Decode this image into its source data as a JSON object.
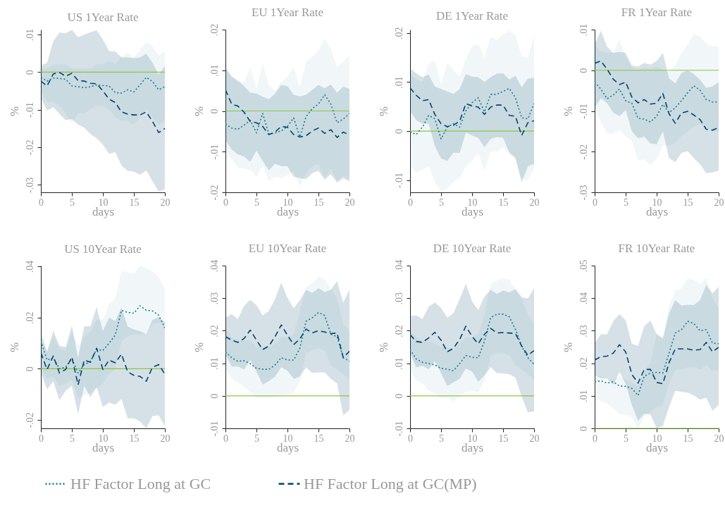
{
  "chart_data": [
    {
      "type": "line",
      "title": "US 1Year Rate",
      "xlabel": "days",
      "ylabel": "%",
      "x": [
        0,
        1,
        2,
        3,
        4,
        5,
        6,
        7,
        8,
        9,
        10,
        11,
        12,
        13,
        14,
        15,
        16,
        17,
        18,
        19,
        20
      ],
      "xlim": [
        0,
        20
      ],
      "xticks": [
        0,
        5,
        10,
        15,
        20
      ],
      "ylim": [
        -0.032,
        0.0113
      ],
      "yticks": [
        {
          "value": 0.01,
          "label": ".01"
        },
        {
          "value": 0,
          "label": "0"
        },
        {
          "value": -0.01,
          "label": "-.01"
        },
        {
          "value": -0.02,
          "label": "-.02"
        },
        {
          "value": -0.03,
          "label": "-.03"
        }
      ],
      "legend": "bottom",
      "ref_lines": [
        {
          "axis": "y",
          "value": 0,
          "color": "#8dc63f"
        }
      ],
      "series": [
        {
          "name": "HF Factor Long at GC",
          "color": "#0e7c8c",
          "line_style": "dotted",
          "values": [
            -0.0014,
            -0.0024,
            -0.0016,
            -0.0017,
            -0.0019,
            -0.0037,
            -0.0039,
            -0.0042,
            -0.0039,
            -0.0034,
            -0.0036,
            -0.0037,
            -0.0055,
            -0.0056,
            -0.0047,
            -0.0053,
            -0.0034,
            -0.0014,
            -0.0025,
            -0.0047,
            -0.0039
          ],
          "lower": [
            -0.005,
            -0.008,
            -0.008,
            -0.009,
            -0.011,
            -0.0137,
            -0.011,
            -0.011,
            -0.01,
            -0.009,
            -0.009,
            -0.01,
            -0.012,
            -0.013,
            -0.013,
            -0.014,
            -0.012,
            -0.01,
            -0.012,
            -0.014,
            -0.013
          ],
          "upper": [
            0.001,
            0.001,
            0.002,
            0.002,
            0.002,
            0.001,
            0.001,
            0.001,
            0.001,
            0.002,
            0.002,
            0.003,
            0.002,
            0.0042,
            0.005,
            0.0039,
            0.0059,
            0.008,
            0.0069,
            0.0044,
            0.0056
          ]
        },
        {
          "name": "HF Factor Long at GC(MP)",
          "color": "#00456b",
          "line_style": "dashed",
          "values": [
            -0.0024,
            -0.0037,
            -0.0005,
            -0.0001,
            -0.0011,
            -0.0003,
            -0.0023,
            -0.0024,
            -0.003,
            -0.0031,
            -0.005,
            -0.0072,
            -0.0081,
            -0.0106,
            -0.0112,
            -0.0114,
            -0.0114,
            -0.0106,
            -0.0131,
            -0.0161,
            -0.015
          ],
          "lower": [
            -0.0069,
            -0.0103,
            -0.0093,
            -0.0111,
            -0.0128,
            -0.0125,
            -0.014,
            -0.0148,
            -0.0165,
            -0.0176,
            -0.0193,
            -0.0218,
            -0.0213,
            -0.0249,
            -0.0263,
            -0.0265,
            -0.0273,
            -0.0262,
            -0.029,
            -0.0318,
            -0.0312
          ],
          "upper": [
            0.0017,
            0.0025,
            0.0082,
            0.0105,
            0.0103,
            0.0112,
            0.0093,
            0.01,
            0.0106,
            0.0111,
            0.0087,
            0.0056,
            0.0055,
            0.0039,
            0.0039,
            0.0037,
            0.0039,
            0.0049,
            0.0025,
            -0.0006,
            0.0016
          ]
        }
      ]
    },
    {
      "type": "line",
      "title": "EU 1Year Rate",
      "xlabel": "days",
      "ylabel": "%",
      "x": [
        0,
        1,
        2,
        3,
        4,
        5,
        6,
        7,
        8,
        9,
        10,
        11,
        12,
        13,
        14,
        15,
        16,
        17,
        18,
        19,
        20
      ],
      "xlim": [
        0,
        20
      ],
      "xticks": [
        0,
        5,
        10,
        15,
        20
      ],
      "ylim": [
        -0.02,
        0.02
      ],
      "yticks": [
        {
          "value": 0.02,
          "label": ".02"
        },
        {
          "value": 0.01,
          "label": ".01"
        },
        {
          "value": 0,
          "label": "0"
        },
        {
          "value": -0.01,
          "label": "-.01"
        },
        {
          "value": -0.02,
          "label": "-.02"
        }
      ],
      "legend": "bottom",
      "ref_lines": [
        {
          "axis": "y",
          "value": 0,
          "color": "#8dc63f"
        }
      ],
      "series": [
        {
          "name": "HF Factor Long at GC",
          "color": "#0e7c8c",
          "line_style": "dotted",
          "values": [
            -0.0032,
            -0.0042,
            -0.0045,
            -0.0035,
            -0.0023,
            -0.0054,
            -0.0006,
            -0.0057,
            -0.0054,
            -0.0049,
            -0.0038,
            -0.0017,
            -0.0064,
            -0.0014,
            0.0006,
            0.0017,
            0.004,
            0.0017,
            -0.0029,
            -0.002,
            -0.0006
          ],
          "lower": [
            -0.0101,
            -0.0119,
            -0.0139,
            -0.0142,
            -0.0145,
            -0.0162,
            -0.0133,
            -0.0173,
            -0.0162,
            -0.0165,
            -0.0158,
            -0.015,
            -0.0185,
            -0.0153,
            -0.0136,
            -0.013,
            -0.0165,
            -0.0142,
            -0.0171,
            -0.0159,
            -0.0165
          ],
          "upper": [
            0.0107,
            0.0084,
            0.0072,
            0.0072,
            0.0107,
            0.0055,
            0.0118,
            0.0064,
            0.0049,
            0.0072,
            0.0084,
            0.0108,
            0.0058,
            0.0121,
            0.0133,
            0.015,
            0.0177,
            0.0153,
            0.0107,
            0.0121,
            0.0137
          ]
        },
        {
          "name": "HF Factor Long at GC(MP)",
          "color": "#00456b",
          "line_style": "dashed",
          "values": [
            0.0052,
            0.0017,
            0.0012,
            -0.0003,
            -0.0026,
            -0.0029,
            -0.0038,
            -0.0058,
            -0.0052,
            -0.0038,
            -0.004,
            -0.0058,
            -0.0064,
            -0.0061,
            -0.0049,
            -0.0042,
            -0.0055,
            -0.0046,
            -0.0065,
            -0.0052,
            -0.0059
          ],
          "lower": [
            -0.0072,
            -0.0095,
            -0.0107,
            -0.0112,
            -0.0125,
            -0.0098,
            -0.0123,
            -0.0146,
            -0.013,
            -0.0136,
            -0.0136,
            -0.0162,
            -0.0165,
            -0.0168,
            -0.0153,
            -0.0147,
            -0.0169,
            -0.0156,
            -0.0176,
            -0.0165,
            -0.0173
          ],
          "upper": [
            0.0106,
            0.0085,
            0.0075,
            0.0061,
            0.0045,
            0.0043,
            0.0035,
            0.0029,
            0.0043,
            0.0064,
            0.0061,
            0.004,
            0.0036,
            0.004,
            0.0052,
            0.0064,
            0.0056,
            0.0065,
            0.0045,
            0.006,
            0.0054
          ]
        }
      ]
    },
    {
      "type": "line",
      "title": "DE 1Year Rate",
      "xlabel": "days",
      "ylabel": "%",
      "x": [
        0,
        1,
        2,
        3,
        4,
        5,
        6,
        7,
        8,
        9,
        10,
        11,
        12,
        13,
        14,
        15,
        16,
        17,
        18,
        19,
        20
      ],
      "xlim": [
        0,
        20
      ],
      "xticks": [
        0,
        5,
        10,
        15,
        20
      ],
      "ylim": [
        -0.0125,
        0.0207
      ],
      "yticks": [
        {
          "value": 0.02,
          "label": ".02"
        },
        {
          "value": 0.01,
          "label": ".01"
        },
        {
          "value": 0,
          "label": "0"
        },
        {
          "value": -0.01,
          "label": "-.01"
        }
      ],
      "legend": "bottom",
      "ref_lines": [
        {
          "axis": "y",
          "value": 0,
          "color": "#8dc63f"
        }
      ],
      "series": [
        {
          "name": "HF Factor Long at GC",
          "color": "#0e7c8c",
          "line_style": "dotted",
          "values": [
            -0.0002,
            -0.0007,
            0.0008,
            0.0032,
            0.0025,
            -0.0016,
            0.0008,
            0.0015,
            0.0008,
            0.0041,
            0.0058,
            0.0068,
            0.0039,
            0.0075,
            0.0075,
            0.0081,
            0.0087,
            0.0068,
            0.0027,
            0.0025,
            0.0056
          ],
          "lower": [
            -0.0071,
            -0.0085,
            -0.0079,
            -0.0072,
            -0.0105,
            -0.0122,
            -0.0117,
            -0.0103,
            -0.0097,
            -0.0072,
            -0.006,
            -0.0045,
            -0.0081,
            -0.0042,
            -0.0042,
            -0.0033,
            -0.0048,
            -0.0057,
            -0.0096,
            -0.0101,
            -0.0076
          ],
          "upper": [
            0.0116,
            0.0106,
            0.0101,
            0.0138,
            0.0144,
            0.0094,
            0.0139,
            0.0125,
            0.011,
            0.0147,
            0.0173,
            0.0178,
            0.0149,
            0.0193,
            0.0186,
            0.0198,
            0.0205,
            0.0195,
            0.0154,
            0.015,
            0.0193
          ]
        },
        {
          "name": "HF Factor Long at GC(MP)",
          "color": "#00456b",
          "line_style": "dashed",
          "values": [
            0.0088,
            0.0073,
            0.0062,
            0.0064,
            0.0034,
            0.0015,
            0.0009,
            0.0012,
            0.002,
            0.0056,
            0.0051,
            0.0049,
            0.0034,
            0.0049,
            0.0053,
            0.0053,
            0.0032,
            0.003,
            -0.0009,
            0.0017,
            0.0021
          ],
          "lower": [
            0.0041,
            0.0022,
            0.0015,
            0.0015,
            -0.0031,
            -0.0056,
            -0.0061,
            -0.0044,
            -0.0045,
            -0.0003,
            -0.0009,
            -0.0014,
            -0.0033,
            -0.0016,
            -0.0012,
            -0.0014,
            -0.0043,
            -0.0055,
            -0.0105,
            -0.0072,
            -0.0067
          ],
          "upper": [
            0.0128,
            0.0118,
            0.011,
            0.0115,
            0.0091,
            0.0086,
            0.0081,
            0.0076,
            0.0086,
            0.0116,
            0.0111,
            0.011,
            0.01,
            0.011,
            0.0117,
            0.0118,
            0.0105,
            0.0113,
            0.0089,
            0.0107,
            0.0109
          ]
        }
      ]
    },
    {
      "type": "line",
      "title": "FR 1Year Rate",
      "xlabel": "days",
      "ylabel": "%",
      "x": [
        0,
        1,
        2,
        3,
        4,
        5,
        6,
        7,
        8,
        9,
        10,
        11,
        12,
        13,
        14,
        15,
        16,
        17,
        18,
        19,
        20
      ],
      "xlim": [
        0,
        20
      ],
      "xticks": [
        0,
        5,
        10,
        15,
        20
      ],
      "ylim": [
        -0.03,
        0.01
      ],
      "yticks": [
        {
          "value": 0.01,
          "label": ".01"
        },
        {
          "value": 0,
          "label": "0"
        },
        {
          "value": -0.01,
          "label": "-.01"
        },
        {
          "value": -0.02,
          "label": "-.02"
        },
        {
          "value": -0.03,
          "label": "-.03"
        }
      ],
      "legend": "bottom",
      "ref_lines": [
        {
          "axis": "y",
          "value": 0,
          "color": "#8dc63f"
        }
      ],
      "series": [
        {
          "name": "HF Factor Long at GC",
          "color": "#0e7c8c",
          "line_style": "dotted",
          "values": [
            -0.0029,
            -0.0046,
            -0.007,
            -0.0061,
            -0.0046,
            -0.0075,
            -0.0081,
            -0.0118,
            -0.012,
            -0.0127,
            -0.0113,
            -0.0084,
            -0.0104,
            -0.0092,
            -0.0075,
            -0.0055,
            -0.0038,
            -0.0049,
            -0.0072,
            -0.0078,
            -0.0078
          ],
          "lower": [
            -0.0098,
            -0.0127,
            -0.0156,
            -0.0156,
            -0.0147,
            -0.0162,
            -0.0173,
            -0.0222,
            -0.0219,
            -0.0234,
            -0.0218,
            -0.0185,
            -0.0185,
            -0.0179,
            -0.0162,
            -0.015,
            -0.0138,
            -0.0133,
            -0.0141,
            -0.015,
            -0.015
          ],
          "upper": [
            0.0063,
            0.0046,
            0.0043,
            0.0043,
            0.0078,
            0.0032,
            0.0006,
            0,
            0.0006,
            0.0003,
            0.0009,
            0,
            -0.0003,
            0.0012,
            0.0043,
            0.0063,
            0.0089,
            0.0084,
            0.0066,
            0.0059,
            0.0058
          ]
        },
        {
          "name": "HF Factor Long at GC(MP)",
          "color": "#00456b",
          "line_style": "dashed",
          "values": [
            0.0017,
            0.0023,
            0.0003,
            -0.0022,
            -0.0035,
            -0.0029,
            -0.0066,
            -0.008,
            -0.0072,
            -0.0083,
            -0.0081,
            -0.0057,
            -0.0107,
            -0.013,
            -0.0105,
            -0.0101,
            -0.011,
            -0.0121,
            -0.0145,
            -0.0147,
            -0.0141
          ],
          "lower": [
            -0.0092,
            -0.0069,
            -0.0081,
            -0.0104,
            -0.0113,
            -0.0098,
            -0.015,
            -0.0167,
            -0.0163,
            -0.018,
            -0.0182,
            -0.015,
            -0.0216,
            -0.0226,
            -0.0203,
            -0.0199,
            -0.0216,
            -0.0231,
            -0.0253,
            -0.0251,
            -0.0247
          ],
          "upper": [
            0.0066,
            0.0097,
            0.0058,
            0.0043,
            0.0045,
            0.0043,
            0.0012,
            0.0009,
            0.0018,
            0.0014,
            0.0023,
            0.0043,
            -0.002,
            -0.0032,
            -0.0007,
            0,
            -0.0009,
            -0.0024,
            -0.0043,
            -0.004,
            -0.0029
          ]
        }
      ]
    },
    {
      "type": "line",
      "title": "US 10Year Rate",
      "xlabel": "days",
      "ylabel": "%",
      "x": [
        0,
        1,
        2,
        3,
        4,
        5,
        6,
        7,
        8,
        9,
        10,
        11,
        12,
        13,
        14,
        15,
        16,
        17,
        18,
        19,
        20
      ],
      "xlim": [
        0,
        20
      ],
      "xticks": [
        0,
        5,
        10,
        15,
        20
      ],
      "ylim": [
        -0.0233,
        0.0403
      ],
      "yticks": [
        {
          "value": 0.04,
          "label": ".04"
        },
        {
          "value": 0.02,
          "label": ".02"
        },
        {
          "value": 0,
          "label": "0"
        },
        {
          "value": -0.02,
          "label": "-.02"
        }
      ],
      "legend": "bottom",
      "ref_lines": [
        {
          "axis": "y",
          "value": 0,
          "color": "#8dc63f"
        }
      ],
      "series": [
        {
          "name": "HF Factor Long at GC",
          "color": "#0e7c8c",
          "line_style": "dotted",
          "values": [
            0.0108,
            0.0034,
            0.0043,
            0,
            0.0006,
            0.0039,
            -0.0017,
            0.0016,
            0.0029,
            0.0076,
            0.0071,
            0.01,
            0.0131,
            0.0228,
            0.022,
            0.0217,
            0.0246,
            0.0228,
            0.0226,
            0.0209,
            0.0159
          ],
          "lower": [
            -0.0003,
            -0.004,
            -0.003,
            -0.0067,
            -0.0058,
            -0.0044,
            -0.0113,
            -0.0104,
            -0.0095,
            -0.0076,
            -0.0058,
            -0.0021,
            -0.0003,
            0.0108,
            0.0126,
            0.0135,
            0.0135,
            0.0137,
            0.0172,
            0.0182,
            0.0172
          ],
          "upper": [
            0.0149,
            0.0071,
            0.0126,
            0.008,
            0.0071,
            0.0145,
            0.0089,
            0.0126,
            0.0145,
            0.0191,
            0.0194,
            0.0253,
            0.0276,
            0.0384,
            0.0377,
            0.037,
            0.0402,
            0.0394,
            0.038,
            0.0357,
            0.0315
          ]
        },
        {
          "name": "HF Factor Long at GC(MP)",
          "color": "#00456b",
          "line_style": "dashed",
          "values": [
            0.0062,
            -0.0003,
            0.005,
            -0.0017,
            -0.0003,
            0.0046,
            -0.0063,
            0.0034,
            0.0025,
            0.008,
            -0.0003,
            0.0034,
            0.0023,
            0.0057,
            -0.0012,
            -0.0026,
            -0.003,
            -0.0049,
            0.0006,
            0.0016,
            -0.0021
          ],
          "lower": [
            -0.0017,
            -0.0081,
            -0.0049,
            -0.0123,
            -0.0086,
            -0.0067,
            -0.0178,
            -0.0067,
            -0.0112,
            -0.0072,
            -0.015,
            -0.0132,
            -0.0141,
            -0.0118,
            -0.0194,
            -0.0194,
            -0.0206,
            -0.0233,
            -0.0185,
            -0.0182,
            -0.0224
          ],
          "upper": [
            0.0135,
            0.0066,
            0.0149,
            0.0089,
            0.0085,
            0.0168,
            0.0043,
            0.0166,
            0.0166,
            0.0241,
            0.0147,
            0.02,
            0.0186,
            0.0239,
            0.0165,
            0.0154,
            0.0147,
            0.0135,
            0.0191,
            0.0202,
            0.0182
          ]
        }
      ]
    },
    {
      "type": "line",
      "title": "EU 10Year Rate",
      "xlabel": "days",
      "ylabel": "%",
      "x": [
        0,
        1,
        2,
        3,
        4,
        5,
        6,
        7,
        8,
        9,
        10,
        11,
        12,
        13,
        14,
        15,
        16,
        17,
        18,
        19,
        20
      ],
      "xlim": [
        0,
        20
      ],
      "xticks": [
        0,
        5,
        10,
        15,
        20
      ],
      "ylim": [
        -0.01,
        0.04
      ],
      "yticks": [
        {
          "value": 0.04,
          "label": ".04"
        },
        {
          "value": 0.03,
          "label": ".03"
        },
        {
          "value": 0.02,
          "label": ".02"
        },
        {
          "value": 0.01,
          "label": ".01"
        },
        {
          "value": 0,
          "label": "0"
        },
        {
          "value": -0.01,
          "label": "-.01"
        }
      ],
      "legend": "bottom",
      "ref_lines": [
        {
          "axis": "y",
          "value": 0,
          "color": "#8dc63f"
        }
      ],
      "series": [
        {
          "name": "HF Factor Long at GC",
          "color": "#0e7c8c",
          "line_style": "dotted",
          "values": [
            0.0135,
            0.0117,
            0.0106,
            0.0108,
            0.0099,
            0.0084,
            0.0082,
            0.0081,
            0.0095,
            0.0117,
            0.011,
            0.011,
            0.0146,
            0.0229,
            0.024,
            0.0256,
            0.0247,
            0.0189,
            0.0182,
            0.0117,
            0.0106
          ],
          "lower": [
            0.0081,
            0.0052,
            0.0041,
            0.0027,
            0.0012,
            -0.0004,
            -0.0006,
            -0.0008,
            -0.0002,
            0.0001,
            0.0005,
            0.0009,
            0.0045,
            0.0131,
            0.0139,
            0.0146,
            0.0139,
            0.0095,
            0.0081,
            0.0066,
            0.0052
          ],
          "upper": [
            0.021,
            0.018,
            0.017,
            0.017,
            0.017,
            0.015,
            0.015,
            0.015,
            0.016,
            0.018,
            0.018,
            0.019,
            0.026,
            0.0334,
            0.0345,
            0.0366,
            0.0357,
            0.033,
            0.03,
            0.022,
            0.02
          ]
        },
        {
          "name": "HF Factor Long at GC(MP)",
          "color": "#00456b",
          "line_style": "dashed",
          "values": [
            0.0182,
            0.0171,
            0.0164,
            0.0176,
            0.0202,
            0.0171,
            0.0142,
            0.0153,
            0.0182,
            0.0218,
            0.0186,
            0.0157,
            0.0175,
            0.0205,
            0.0193,
            0.02,
            0.0196,
            0.0191,
            0.0193,
            0.0117,
            0.0137
          ],
          "lower": [
            0.0128,
            0.009,
            0.009,
            0.0081,
            0.011,
            0.0074,
            0.0034,
            0.0045,
            0.0059,
            0.0088,
            0.0077,
            0.0052,
            0.0059,
            0.0087,
            0.007,
            0.0072,
            0.0072,
            0.0052,
            0.0038,
            -0.006,
            -0.0043
          ],
          "upper": [
            0.024,
            0.0251,
            0.0236,
            0.0276,
            0.0295,
            0.0279,
            0.0247,
            0.0261,
            0.0297,
            0.0348,
            0.0301,
            0.0269,
            0.0294,
            0.0326,
            0.0316,
            0.033,
            0.0319,
            0.0326,
            0.0353,
            0.0287,
            0.0326
          ]
        }
      ]
    },
    {
      "type": "line",
      "title": "DE 10Year Rate",
      "xlabel": "days",
      "ylabel": "%",
      "x": [
        0,
        1,
        2,
        3,
        4,
        5,
        6,
        7,
        8,
        9,
        10,
        11,
        12,
        13,
        14,
        15,
        16,
        17,
        18,
        19,
        20
      ],
      "xlim": [
        0,
        20
      ],
      "xticks": [
        0,
        5,
        10,
        15,
        20
      ],
      "ylim": [
        -0.01,
        0.04
      ],
      "yticks": [
        {
          "value": 0.04,
          "label": ".04"
        },
        {
          "value": 0.03,
          "label": ".03"
        },
        {
          "value": 0.02,
          "label": ".02"
        },
        {
          "value": 0.01,
          "label": ".01"
        },
        {
          "value": 0,
          "label": "0"
        },
        {
          "value": -0.01,
          "label": "-.01"
        }
      ],
      "legend": "bottom",
      "ref_lines": [
        {
          "axis": "y",
          "value": 0,
          "color": "#8dc63f"
        }
      ],
      "series": [
        {
          "name": "HF Factor Long at GC",
          "color": "#0e7c8c",
          "line_style": "dotted",
          "values": [
            0.0142,
            0.0113,
            0.0103,
            0.0099,
            0.0095,
            0.0084,
            0.0082,
            0.0077,
            0.0099,
            0.0124,
            0.0118,
            0.0117,
            0.0168,
            0.024,
            0.0251,
            0.0251,
            0.0243,
            0.0204,
            0.0153,
            0.0117,
            0.0097
          ],
          "lower": [
            0.0081,
            0.0048,
            0.0038,
            0.0016,
            0.0009,
            -0.0007,
            -0.0004,
            -0.0017,
            -0.0002,
            0.0012,
            0.0016,
            0.0011,
            0.0045,
            0.0124,
            0.0131,
            0.0131,
            0.0124,
            0.0095,
            0.0081,
            0.0066,
            0.0048
          ],
          "upper": [
            0.02,
            0.018,
            0.017,
            0.017,
            0.016,
            0.015,
            0.015,
            0.014,
            0.016,
            0.018,
            0.018,
            0.019,
            0.025,
            0.0344,
            0.0354,
            0.0361,
            0.0357,
            0.0326,
            0.03,
            0.025,
            0.022
          ]
        },
        {
          "name": "HF Factor Long at GC(MP)",
          "color": "#00456b",
          "line_style": "dashed",
          "values": [
            0.0188,
            0.0167,
            0.0164,
            0.0178,
            0.0195,
            0.0171,
            0.0135,
            0.0146,
            0.0173,
            0.0214,
            0.0182,
            0.016,
            0.0189,
            0.0207,
            0.0193,
            0.0194,
            0.0193,
            0.0191,
            0.0153,
            0.0124,
            0.0139
          ],
          "lower": [
            0.0131,
            0.0087,
            0.0092,
            0.0082,
            0.0106,
            0.007,
            0.003,
            0.0041,
            0.0052,
            0.0084,
            0.0074,
            0.0043,
            0.0063,
            0.0088,
            0.007,
            0.0069,
            0.0066,
            0.0056,
            -0.0002,
            -0.0051,
            -0.0048
          ],
          "upper": [
            0.0245,
            0.0247,
            0.0236,
            0.0274,
            0.0287,
            0.027,
            0.024,
            0.0254,
            0.0297,
            0.0344,
            0.029,
            0.0263,
            0.0305,
            0.0326,
            0.0313,
            0.0323,
            0.0318,
            0.0328,
            0.0303,
            0.0299,
            0.033
          ]
        }
      ]
    },
    {
      "type": "line",
      "title": "FR 10Year Rate",
      "xlabel": "days",
      "ylabel": "%",
      "x": [
        0,
        1,
        2,
        3,
        4,
        5,
        6,
        7,
        8,
        9,
        10,
        11,
        12,
        13,
        14,
        15,
        16,
        17,
        18,
        19,
        20
      ],
      "xlim": [
        0,
        20
      ],
      "xticks": [
        0,
        5,
        10,
        15,
        20
      ],
      "ylim": [
        0,
        0.05
      ],
      "yticks": [
        {
          "value": 0.05,
          "label": ".05"
        },
        {
          "value": 0.04,
          "label": ".04"
        },
        {
          "value": 0.03,
          "label": ".03"
        },
        {
          "value": 0.02,
          "label": ".02"
        },
        {
          "value": 0.01,
          "label": ".01"
        },
        {
          "value": 0,
          "label": "0"
        }
      ],
      "legend": "bottom",
      "ref_lines": [
        {
          "axis": "y",
          "value": 0,
          "color": "#8dc63f"
        }
      ],
      "series": [
        {
          "name": "HF Factor Long at GC",
          "color": "#0e7c8c",
          "line_style": "dotted",
          "values": [
            0.0143,
            0.0146,
            0.0139,
            0.0143,
            0.013,
            0.0129,
            0.0123,
            0.0101,
            0.016,
            0.017,
            0.0172,
            0.017,
            0.0231,
            0.0293,
            0.0303,
            0.0329,
            0.0322,
            0.03,
            0.0303,
            0.0262,
            0.026
          ],
          "lower": [
            0.0092,
            0.0085,
            0.0076,
            0.0061,
            0.0045,
            0.004,
            0.0035,
            0,
            0.0036,
            0.0051,
            0.0065,
            0.0072,
            0.0137,
            0.0181,
            0.0181,
            0.0188,
            0.0188,
            0.0181,
            0.0195,
            0.0177,
            0.0181
          ],
          "upper": [
            0.016,
            0.016,
            0.015,
            0.015,
            0.016,
            0.015,
            0.014,
            0.013,
            0.018,
            0.02,
            0.0291,
            0.0282,
            0.0376,
            0.0423,
            0.043,
            0.0461,
            0.0455,
            0.0444,
            0.0462,
            0.04,
            0.037
          ]
        },
        {
          "name": "HF Factor Long at GC(MP)",
          "color": "#00456b",
          "line_style": "dashed",
          "values": [
            0.021,
            0.022,
            0.0222,
            0.0231,
            0.0257,
            0.0235,
            0.0166,
            0.0139,
            0.0181,
            0.0181,
            0.0141,
            0.0137,
            0.0202,
            0.0244,
            0.0244,
            0.0244,
            0.024,
            0.0242,
            0.0264,
            0.0235,
            0.0249
          ],
          "lower": [
            0.0163,
            0.0155,
            0.0153,
            0.0134,
            0.0173,
            0.0137,
            0.0072,
            0.0023,
            0.0045,
            0.0042,
            0,
            0.0007,
            0.0065,
            0.0116,
            0.0112,
            0.011,
            0.0101,
            0.0088,
            0.0094,
            0.0054,
            0.0072
          ],
          "upper": [
            0.0262,
            0.0289,
            0.0289,
            0.0329,
            0.0352,
            0.0332,
            0.026,
            0.0253,
            0.0314,
            0.0331,
            0.0289,
            0.0275,
            0.0354,
            0.0394,
            0.0377,
            0.038,
            0.0379,
            0.0394,
            0.0441,
            0.0415,
            0.0435
          ]
        }
      ]
    }
  ]
}
